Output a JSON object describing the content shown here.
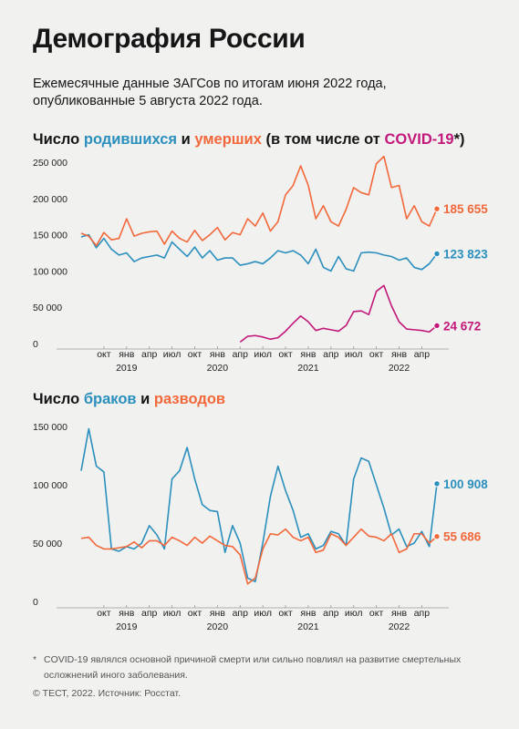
{
  "header": {
    "title": "Демография России",
    "subtitle": [
      "Ежемесячные данные ЗАГСов по итогам июня 2022 года,",
      "опубликованные 5 августа 2022 года."
    ]
  },
  "chart_data": [
    {
      "type": "line",
      "title_parts": [
        {
          "text": "Число"
        },
        {
          "text": "родившихся",
          "color": "#2b8fbd"
        },
        {
          "text": "и"
        },
        {
          "text": "умерших",
          "color": "#f2683a"
        },
        {
          "text": "(в том числе от"
        },
        {
          "text": "COVID-19",
          "color": "#c2187a"
        },
        {
          "text": "*)"
        }
      ],
      "categories": [
        null,
        null,
        null,
        "окт",
        null,
        null,
        "янв",
        null,
        null,
        "апр",
        null,
        null,
        "июл",
        null,
        null,
        "окт",
        null,
        null,
        "янв",
        null,
        null,
        "апр",
        null,
        null,
        "июл",
        null,
        null,
        "окт",
        null,
        null,
        "янв",
        null,
        null,
        "апр",
        null,
        null,
        "июл",
        null,
        null,
        "окт",
        null,
        null,
        "янв",
        null,
        null,
        "апр",
        null,
        null
      ],
      "category_years": [
        null,
        null,
        null,
        null,
        null,
        null,
        "2019",
        null,
        null,
        null,
        null,
        null,
        null,
        null,
        null,
        null,
        null,
        null,
        "2020",
        null,
        null,
        null,
        null,
        null,
        null,
        null,
        null,
        null,
        null,
        null,
        "2021",
        null,
        null,
        null,
        null,
        null,
        null,
        null,
        null,
        null,
        null,
        null,
        "2022",
        null,
        null,
        null,
        null,
        null
      ],
      "ylim": [
        0,
        250000
      ],
      "yticks": [
        0,
        {
          "value": 50000,
          "label": "50 000"
        },
        {
          "value": 100000,
          "label": "100 000"
        },
        {
          "value": 150000,
          "label": "150 000"
        },
        {
          "value": 200000,
          "label": "200 000"
        },
        {
          "value": 250000,
          "label": "250 000"
        }
      ],
      "series": [
        {
          "name": "родившихся",
          "color": "#2b8fbd",
          "values": [
            147000,
            150000,
            132000,
            145000,
            130000,
            122000,
            125000,
            113000,
            118000,
            120000,
            122000,
            118000,
            140000,
            130000,
            120000,
            133000,
            118000,
            128000,
            115000,
            118000,
            118000,
            108000,
            110000,
            113000,
            110000,
            118000,
            128000,
            125000,
            128000,
            122000,
            110000,
            130000,
            105000,
            100000,
            120000,
            103000,
            100000,
            125000,
            126000,
            125000,
            122000,
            120000,
            115000,
            118000,
            105000,
            102000,
            110000,
            123823
          ],
          "value_labels": [
            null,
            null,
            null,
            null,
            null,
            null,
            null,
            null,
            null,
            null,
            null,
            null,
            null,
            null,
            null,
            null,
            null,
            null,
            null,
            null,
            null,
            null,
            null,
            null,
            null,
            null,
            null,
            null,
            null,
            null,
            null,
            null,
            null,
            null,
            null,
            null,
            null,
            null,
            null,
            null,
            null,
            null,
            null,
            null,
            null,
            null,
            null,
            "123 823"
          ]
        },
        {
          "name": "умерших",
          "color": "#f2683a",
          "values": [
            152000,
            148000,
            135000,
            153000,
            143000,
            145000,
            172000,
            148000,
            152000,
            154000,
            155000,
            137000,
            155000,
            145000,
            140000,
            156000,
            142000,
            150000,
            160000,
            143000,
            153000,
            150000,
            172000,
            162000,
            180000,
            155000,
            168000,
            205000,
            218000,
            245000,
            218000,
            172000,
            190000,
            168000,
            162000,
            185000,
            215000,
            208000,
            205000,
            248000,
            258000,
            215000,
            218000,
            172000,
            190000,
            168000,
            162000,
            185655
          ],
          "value_labels": [
            null,
            null,
            null,
            null,
            null,
            null,
            null,
            null,
            null,
            null,
            null,
            null,
            null,
            null,
            null,
            null,
            null,
            null,
            null,
            null,
            null,
            null,
            null,
            null,
            null,
            null,
            null,
            null,
            null,
            null,
            null,
            null,
            null,
            null,
            null,
            null,
            null,
            null,
            null,
            null,
            null,
            null,
            null,
            null,
            null,
            null,
            null,
            "185 655"
          ]
        },
        {
          "name": "COVID-19",
          "color": "#c2187a",
          "values": [
            null,
            null,
            null,
            null,
            null,
            null,
            null,
            null,
            null,
            null,
            null,
            null,
            null,
            null,
            null,
            null,
            null,
            null,
            null,
            null,
            null,
            2000,
            10000,
            11000,
            9000,
            6000,
            8000,
            17000,
            28000,
            38000,
            30000,
            18000,
            21000,
            19000,
            17000,
            25000,
            44000,
            45000,
            40000,
            72000,
            80000,
            52000,
            30000,
            20000,
            19000,
            18000,
            16000,
            24672
          ],
          "value_labels": [
            null,
            null,
            null,
            null,
            null,
            null,
            null,
            null,
            null,
            null,
            null,
            null,
            null,
            null,
            null,
            null,
            null,
            null,
            null,
            null,
            null,
            null,
            null,
            null,
            null,
            null,
            null,
            null,
            null,
            null,
            null,
            null,
            null,
            null,
            null,
            null,
            null,
            null,
            null,
            null,
            null,
            null,
            null,
            null,
            null,
            null,
            null,
            "24 672"
          ]
        }
      ]
    },
    {
      "type": "line",
      "title_parts": [
        {
          "text": "Число"
        },
        {
          "text": "браков",
          "color": "#2b8fbd"
        },
        {
          "text": "и"
        },
        {
          "text": "разводов",
          "color": "#f2683a"
        }
      ],
      "categories": [
        null,
        null,
        null,
        "окт",
        null,
        null,
        "янв",
        null,
        null,
        "апр",
        null,
        null,
        "июл",
        null,
        null,
        "окт",
        null,
        null,
        "янв",
        null,
        null,
        "апр",
        null,
        null,
        "июл",
        null,
        null,
        "окт",
        null,
        null,
        "янв",
        null,
        null,
        "апр",
        null,
        null,
        "июл",
        null,
        null,
        "окт",
        null,
        null,
        "янв",
        null,
        null,
        "апр",
        null,
        null
      ],
      "category_years": [
        null,
        null,
        null,
        null,
        null,
        null,
        "2019",
        null,
        null,
        null,
        null,
        null,
        null,
        null,
        null,
        null,
        null,
        null,
        "2020",
        null,
        null,
        null,
        null,
        null,
        null,
        null,
        null,
        null,
        null,
        null,
        "2021",
        null,
        null,
        null,
        null,
        null,
        null,
        null,
        null,
        null,
        null,
        null,
        "2022",
        null,
        null,
        null,
        null,
        null
      ],
      "ylim": [
        0,
        150000
      ],
      "yticks": [
        0,
        {
          "value": 50000,
          "label": "50 000"
        },
        {
          "value": 100000,
          "label": "100 000"
        },
        {
          "value": 150000,
          "label": "150 000"
        }
      ],
      "series": [
        {
          "name": "браков",
          "color": "#2b8fbd",
          "values": [
            112000,
            148000,
            116000,
            111000,
            45000,
            43000,
            47000,
            45000,
            50000,
            65000,
            57000,
            45000,
            105000,
            112000,
            132000,
            105000,
            83000,
            78000,
            77000,
            42000,
            65000,
            50000,
            20000,
            17000,
            50000,
            90000,
            116000,
            95000,
            78000,
            55000,
            58000,
            45000,
            48000,
            60000,
            58000,
            48000,
            105000,
            123000,
            120000,
            100000,
            80000,
            57000,
            62000,
            47000,
            50000,
            60000,
            47000,
            100908
          ],
          "value_labels": [
            null,
            null,
            null,
            null,
            null,
            null,
            null,
            null,
            null,
            null,
            null,
            null,
            null,
            null,
            null,
            null,
            null,
            null,
            null,
            null,
            null,
            null,
            null,
            null,
            null,
            null,
            null,
            null,
            null,
            null,
            null,
            null,
            null,
            null,
            null,
            null,
            null,
            null,
            null,
            null,
            null,
            null,
            null,
            null,
            null,
            null,
            null,
            "100 908"
          ]
        },
        {
          "name": "разводов",
          "color": "#f2683a",
          "values": [
            54000,
            55000,
            48000,
            45000,
            45000,
            46000,
            47000,
            51000,
            46000,
            52000,
            52000,
            48000,
            55000,
            52000,
            48000,
            55000,
            50000,
            56000,
            52000,
            48000,
            47000,
            40000,
            15000,
            20000,
            45000,
            58000,
            57000,
            62000,
            55000,
            52000,
            55000,
            42000,
            44000,
            58000,
            55000,
            48000,
            55000,
            62000,
            56000,
            55000,
            52000,
            58000,
            42000,
            45000,
            58000,
            58000,
            50000,
            55686
          ],
          "value_labels": [
            null,
            null,
            null,
            null,
            null,
            null,
            null,
            null,
            null,
            null,
            null,
            null,
            null,
            null,
            null,
            null,
            null,
            null,
            null,
            null,
            null,
            null,
            null,
            null,
            null,
            null,
            null,
            null,
            null,
            null,
            null,
            null,
            null,
            null,
            null,
            null,
            null,
            null,
            null,
            null,
            null,
            null,
            null,
            null,
            null,
            null,
            null,
            "55 686"
          ]
        }
      ]
    }
  ],
  "footer": {
    "note_mark": "*",
    "note": "COVID-19 являлся основной причиной смерти или сильно повлиял на развитие смертельных осложнений иного заболевания.",
    "source": "© ТЕСТ, 2022. Источник: Росстат."
  }
}
